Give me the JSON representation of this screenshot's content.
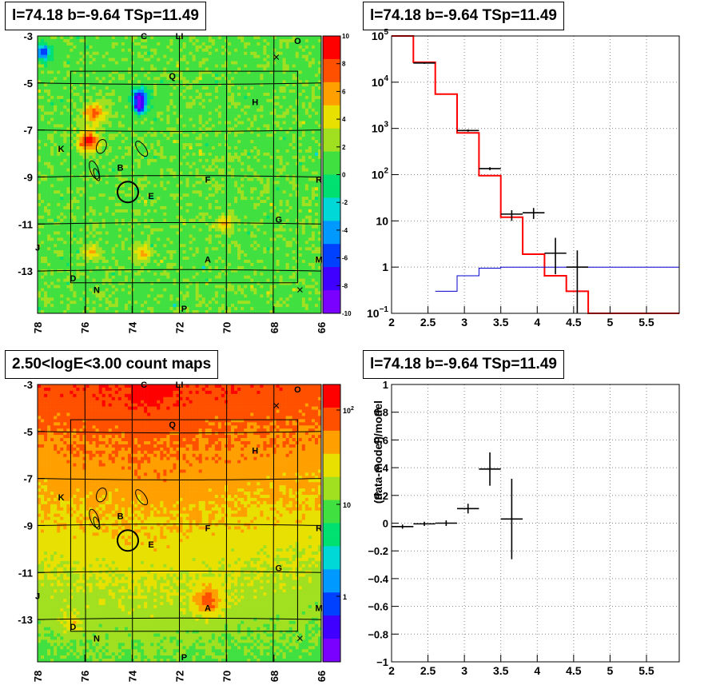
{
  "panels": {
    "top_left": {
      "title": "l=74.18 b=-9.64 TSp=11.49"
    },
    "top_right": {
      "title": "l=74.18 b=-9.64 TSp=11.49"
    },
    "bottom_left": {
      "title": "2.50<logE<3.00 count maps"
    },
    "bottom_right": {
      "title": "l=74.18 b=-9.64 TSp=11.49"
    }
  },
  "colors": {
    "red": "#ff0000",
    "blue": "#0000cc",
    "black": "#000000",
    "grid": "#000000"
  },
  "chart_data": [
    {
      "type": "heatmap",
      "title": "l=74.18 b=-9.64 TSp=11.49",
      "xlim": [
        78,
        66
      ],
      "ylim": [
        -3,
        -14.8
      ],
      "x_ticks": [
        "78",
        "76",
        "74",
        "72",
        "70",
        "68",
        "66"
      ],
      "y_ticks": [
        "-3",
        "-5",
        "-7",
        "-9",
        "-11",
        "-13"
      ],
      "colorbar_ticks": [
        "10",
        "8",
        "6",
        "4",
        "2",
        "0",
        "-2",
        "-4",
        "-6",
        "-8",
        "-10"
      ],
      "source_labels": [
        {
          "t": "C",
          "l": 73.5,
          "b": -3.0
        },
        {
          "t": "LI",
          "l": 72.0,
          "b": -3.0
        },
        {
          "t": "O",
          "l": 67.0,
          "b": -3.2
        },
        {
          "t": "Q",
          "l": 72.3,
          "b": -4.7
        },
        {
          "t": "H",
          "l": 68.8,
          "b": -5.8
        },
        {
          "t": "K",
          "l": 77.0,
          "b": -7.8
        },
        {
          "t": "B",
          "l": 74.5,
          "b": -8.6
        },
        {
          "t": "E",
          "l": 73.2,
          "b": -9.8
        },
        {
          "t": "F",
          "l": 70.8,
          "b": -9.1
        },
        {
          "t": "R",
          "l": 66.1,
          "b": -9.1
        },
        {
          "t": "G",
          "l": 67.8,
          "b": -10.8
        },
        {
          "t": "J",
          "l": 78.0,
          "b": -12.0
        },
        {
          "t": "A",
          "l": 70.8,
          "b": -12.5
        },
        {
          "t": "M",
          "l": 66.1,
          "b": -12.5
        },
        {
          "t": "D",
          "l": 76.5,
          "b": -13.3
        },
        {
          "t": "N",
          "l": 75.5,
          "b": -13.8
        },
        {
          "t": "P",
          "l": 71.8,
          "b": -14.6
        }
      ]
    },
    {
      "type": "line",
      "title": "l=74.18 b=-9.64 TSp=11.49",
      "xlim": [
        2,
        5.95
      ],
      "ylim": [
        0.1,
        100000
      ],
      "yscale": "log",
      "x_ticks": [
        "2",
        "2.5",
        "3",
        "3.5",
        "4",
        "4.5",
        "5",
        "5.5"
      ],
      "y_ticks": [
        {
          "v": 100000,
          "b": "10",
          "e": "5"
        },
        {
          "v": 10000,
          "b": "10",
          "e": "4"
        },
        {
          "v": 1000,
          "b": "10",
          "e": "3"
        },
        {
          "v": 100,
          "b": "10",
          "e": "2"
        },
        {
          "v": 10,
          "b": "10",
          "e": ""
        },
        {
          "v": 1,
          "b": "1",
          "e": ""
        },
        {
          "v": 0.1,
          "b": "10",
          "e": "−1"
        }
      ],
      "series": [
        {
          "style": "step",
          "color": "#ff0000",
          "edges": [
            2.0,
            2.3,
            2.6,
            2.9,
            3.2,
            3.5,
            3.8,
            4.1,
            4.4,
            4.7,
            5.95
          ],
          "values": [
            100000,
            27000,
            5500,
            800,
            95,
            12,
            1.9,
            0.65,
            0.3,
            0.1
          ]
        },
        {
          "style": "step",
          "color": "#0000cc",
          "edges": [
            2.6,
            2.9,
            3.2,
            3.5,
            3.8,
            4.1,
            5.95
          ],
          "values": [
            0.3,
            0.65,
            0.95,
            1.0,
            1.0,
            1.0
          ]
        },
        {
          "style": "errorbar",
          "color": "#000000",
          "points": [
            {
              "x": 2.45,
              "y": 26000,
              "xerr": 0.15,
              "ylo": 25000,
              "yhi": 27000
            },
            {
              "x": 3.05,
              "y": 900,
              "xerr": 0.15,
              "ylo": 850,
              "yhi": 950
            },
            {
              "x": 3.35,
              "y": 135,
              "xerr": 0.15,
              "ylo": 125,
              "yhi": 145
            },
            {
              "x": 3.65,
              "y": 14,
              "xerr": 0.15,
              "ylo": 10,
              "yhi": 17
            },
            {
              "x": 3.95,
              "y": 15,
              "xerr": 0.15,
              "ylo": 11,
              "yhi": 19
            },
            {
              "x": 4.25,
              "y": 2.0,
              "xerr": 0.15,
              "ylo": 0.7,
              "yhi": 4.3
            },
            {
              "x": 4.55,
              "y": 1.0,
              "xerr": 0.15,
              "ylo": 0.1,
              "yhi": 2.3
            }
          ]
        }
      ]
    },
    {
      "type": "heatmap",
      "title": "2.50<logE<3.00 count maps",
      "xlim": [
        78,
        66
      ],
      "ylim": [
        -3,
        -14.8
      ],
      "x_ticks": [
        "78",
        "76",
        "74",
        "72",
        "70",
        "68",
        "66"
      ],
      "y_ticks": [
        "-3",
        "-5",
        "-7",
        "-9",
        "-11",
        "-13"
      ],
      "colorbar_ticks": [
        {
          "b": "10",
          "e": "2"
        },
        {
          "b": "10",
          "e": ""
        },
        {
          "b": "1",
          "e": ""
        }
      ],
      "source_labels": [
        {
          "t": "C",
          "l": 73.5,
          "b": -3.0
        },
        {
          "t": "LI",
          "l": 72.0,
          "b": -3.0
        },
        {
          "t": "O",
          "l": 67.0,
          "b": -3.2
        },
        {
          "t": "Q",
          "l": 72.3,
          "b": -4.7
        },
        {
          "t": "H",
          "l": 68.8,
          "b": -5.8
        },
        {
          "t": "K",
          "l": 77.0,
          "b": -7.8
        },
        {
          "t": "B",
          "l": 74.5,
          "b": -8.6
        },
        {
          "t": "E",
          "l": 73.2,
          "b": -9.8
        },
        {
          "t": "F",
          "l": 70.8,
          "b": -9.1
        },
        {
          "t": "R",
          "l": 66.1,
          "b": -9.1
        },
        {
          "t": "G",
          "l": 67.8,
          "b": -10.8
        },
        {
          "t": "J",
          "l": 78.0,
          "b": -12.0
        },
        {
          "t": "A",
          "l": 70.8,
          "b": -12.5
        },
        {
          "t": "M",
          "l": 66.1,
          "b": -12.5
        },
        {
          "t": "D",
          "l": 76.5,
          "b": -13.3
        },
        {
          "t": "N",
          "l": 75.5,
          "b": -13.8
        },
        {
          "t": "P",
          "l": 71.8,
          "b": -14.6
        }
      ]
    },
    {
      "type": "scatter",
      "title": "l=74.18 b=-9.64 TSp=11.49",
      "xlim": [
        2,
        5.95
      ],
      "ylim": [
        -1,
        1
      ],
      "ylabel": "(data-model)/model",
      "x_ticks": [
        "2",
        "2.5",
        "3",
        "3.5",
        "4",
        "4.5",
        "5",
        "5.5"
      ],
      "y_ticks": [
        "1",
        "0.8",
        "0.6",
        "0.4",
        "0.2",
        "0",
        "−0.2",
        "−0.4",
        "−0.6",
        "−0.8",
        "−1"
      ],
      "points": [
        {
          "x": 2.15,
          "y": -0.025,
          "xerr": 0.15,
          "ylo": -0.04,
          "yhi": -0.01
        },
        {
          "x": 2.45,
          "y": -0.005,
          "xerr": 0.15,
          "ylo": -0.02,
          "yhi": 0.01
        },
        {
          "x": 2.75,
          "y": 0.0,
          "xerr": 0.15,
          "ylo": -0.02,
          "yhi": 0.02
        },
        {
          "x": 3.05,
          "y": 0.105,
          "xerr": 0.15,
          "ylo": 0.07,
          "yhi": 0.14
        },
        {
          "x": 3.35,
          "y": 0.39,
          "xerr": 0.15,
          "ylo": 0.27,
          "yhi": 0.51
        },
        {
          "x": 3.65,
          "y": 0.03,
          "xerr": 0.15,
          "ylo": -0.26,
          "yhi": 0.32
        }
      ]
    }
  ]
}
